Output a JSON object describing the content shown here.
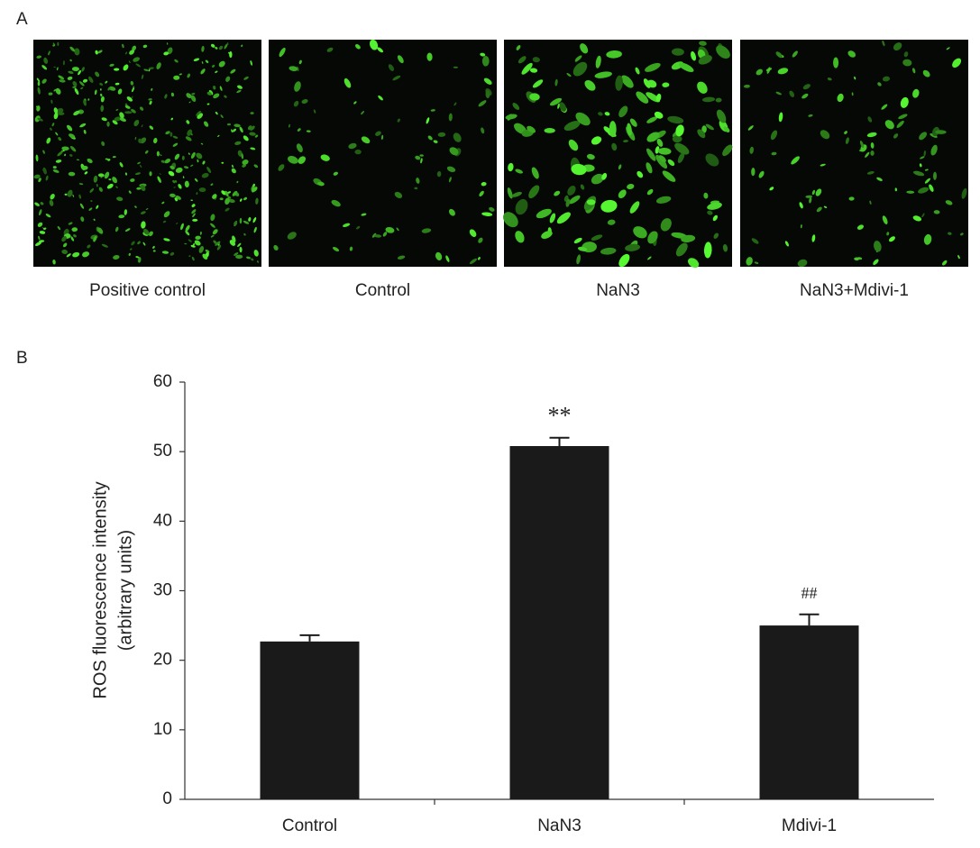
{
  "panel_labels": [
    "A",
    "B"
  ],
  "images": {
    "captions": [
      "Positive control",
      "Control",
      "NaN3",
      "NaN3+Mdivi-1"
    ]
  },
  "chart_data": {
    "type": "bar",
    "categories": [
      "Control",
      "NaN3",
      "Mdivi-1"
    ],
    "values": [
      22.7,
      50.8,
      25.0
    ],
    "errors": [
      0.9,
      1.2,
      1.6
    ],
    "significance": [
      null,
      "**",
      "##"
    ],
    "ylabel": [
      "ROS fluorescence intensity",
      "(arbitrary units)"
    ],
    "ylim": [
      0,
      60
    ],
    "yticks": [
      0,
      10,
      20,
      30,
      40,
      50,
      60
    ],
    "color": "#1a1a1a",
    "grid": false
  }
}
